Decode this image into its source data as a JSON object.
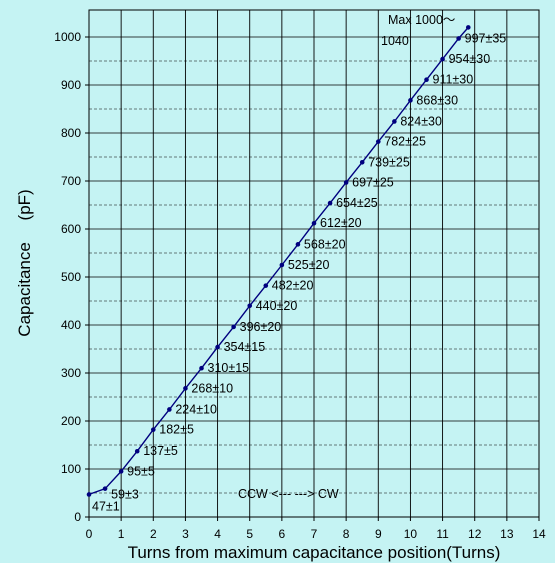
{
  "chart_data": {
    "type": "line",
    "xlabel": "Turns from maximum capacitance position(Turns)",
    "ylabel": "Capacitance 　(pF)",
    "xlim": [
      0,
      14
    ],
    "ylim": [
      0,
      1050
    ],
    "xticks": [
      0,
      1,
      2,
      3,
      4,
      5,
      6,
      7,
      8,
      9,
      10,
      11,
      12,
      13,
      14
    ],
    "yticks": [
      0,
      100,
      200,
      300,
      400,
      500,
      600,
      700,
      800,
      900,
      1000
    ],
    "grid": {
      "x_major_every": 1,
      "x_strong_every": 1,
      "y_major": 100,
      "y_minor": 50
    },
    "line_color": "#00007f",
    "background": "#c5f3f3",
    "series": [
      {
        "x": [
          0,
          0.5,
          1,
          1.5,
          2,
          2.5,
          3,
          3.5,
          4,
          4.5,
          5,
          5.5,
          6,
          6.5,
          7,
          7.5,
          8,
          8.5,
          9,
          9.5,
          10,
          10.5,
          11,
          11.5,
          11.8
        ],
        "values": [
          47,
          59,
          95,
          137,
          182,
          224,
          268,
          310,
          354,
          396,
          440,
          482,
          525,
          568,
          612,
          654,
          697,
          739,
          782,
          824,
          868,
          911,
          954,
          997,
          1020
        ]
      }
    ],
    "data_labels": [
      {
        "x": 0,
        "text": "47±1"
      },
      {
        "x": 0.5,
        "text": "59±3"
      },
      {
        "x": 1,
        "text": "95±5"
      },
      {
        "x": 1.5,
        "text": "137±5"
      },
      {
        "x": 2,
        "text": "182±5"
      },
      {
        "x": 2.5,
        "text": "224±10"
      },
      {
        "x": 3,
        "text": "268±10"
      },
      {
        "x": 3.5,
        "text": "310±15"
      },
      {
        "x": 4,
        "text": "354±15"
      },
      {
        "x": 4.5,
        "text": "396±20"
      },
      {
        "x": 5,
        "text": "440±20"
      },
      {
        "x": 5.5,
        "text": "482±20"
      },
      {
        "x": 6,
        "text": "525±20"
      },
      {
        "x": 6.5,
        "text": "568±20"
      },
      {
        "x": 7,
        "text": "612±20"
      },
      {
        "x": 7.5,
        "text": "654±25"
      },
      {
        "x": 8,
        "text": "697±25"
      },
      {
        "x": 8.5,
        "text": "739±25"
      },
      {
        "x": 9,
        "text": "782±25"
      },
      {
        "x": 9.5,
        "text": "824±30"
      },
      {
        "x": 10,
        "text": "868±30"
      },
      {
        "x": 10.5,
        "text": "911±30"
      },
      {
        "x": 11,
        "text": "954±30"
      },
      {
        "x": 11.5,
        "text": "997±35"
      }
    ],
    "annotations": {
      "max_line1": "Max 1000〜",
      "max_line2": "1040",
      "direction": "CCW <--- ---> CW"
    }
  }
}
